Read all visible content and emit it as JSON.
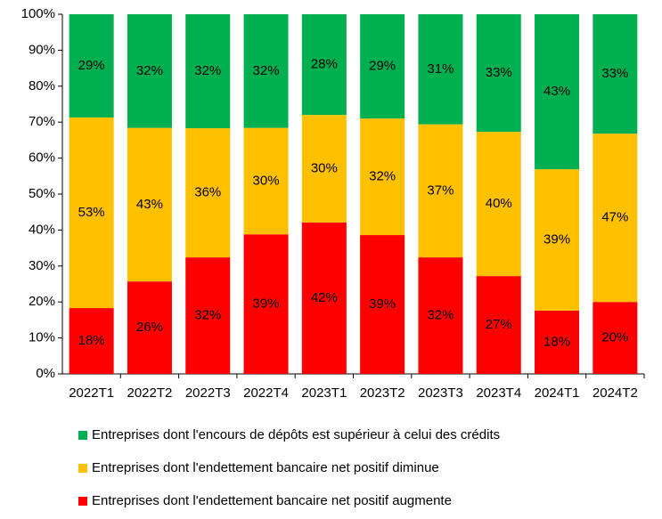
{
  "chart_data": {
    "type": "stacked-bar",
    "categories": [
      "2022T1",
      "2022T2",
      "2022T3",
      "2022T4",
      "2023T1",
      "2023T2",
      "2023T3",
      "2023T4",
      "2024T1",
      "2024T2"
    ],
    "series": [
      {
        "name": "Entreprises dont l'endettement bancaire net positif augmente",
        "color": "#ff0000",
        "values": [
          18.3,
          25.7,
          32.4,
          38.8,
          42.1,
          38.6,
          32.4,
          27.2,
          17.6,
          20.0
        ],
        "value_labels": [
          "18%",
          "26%",
          "32%",
          "39%",
          "42%",
          "39%",
          "32%",
          "27%",
          "18%",
          "20%"
        ]
      },
      {
        "name": "Entreprises dont l'endettement bancaire net positif diminue",
        "color": "#ffc000",
        "values": [
          53.0,
          42.7,
          35.9,
          29.6,
          29.9,
          32.4,
          37.0,
          40.1,
          39.3,
          46.8
        ],
        "value_labels": [
          "53%",
          "43%",
          "36%",
          "30%",
          "30%",
          "32%",
          "37%",
          "40%",
          "39%",
          "47%"
        ]
      },
      {
        "name": "Entreprises dont l'encours de dépôts est supérieur à celui des crédits",
        "color": "#00b050",
        "values": [
          28.7,
          31.6,
          31.7,
          31.6,
          28.0,
          29.0,
          30.6,
          32.7,
          43.1,
          33.2
        ],
        "value_labels": [
          "29%",
          "32%",
          "32%",
          "32%",
          "28%",
          "29%",
          "31%",
          "33%",
          "43%",
          "33%"
        ]
      }
    ],
    "ylim": [
      0,
      100
    ],
    "yticks": [
      {
        "value": 0,
        "label": "0%"
      },
      {
        "value": 10,
        "label": "10%"
      },
      {
        "value": 20,
        "label": "20%"
      },
      {
        "value": 30,
        "label": "30%"
      },
      {
        "value": 40,
        "label": "40%"
      },
      {
        "value": 50,
        "label": "50%"
      },
      {
        "value": 60,
        "label": "60%"
      },
      {
        "value": 70,
        "label": "70%"
      },
      {
        "value": 80,
        "label": "80%"
      },
      {
        "value": 90,
        "label": "90%"
      },
      {
        "value": 100,
        "label": "100%"
      }
    ]
  }
}
